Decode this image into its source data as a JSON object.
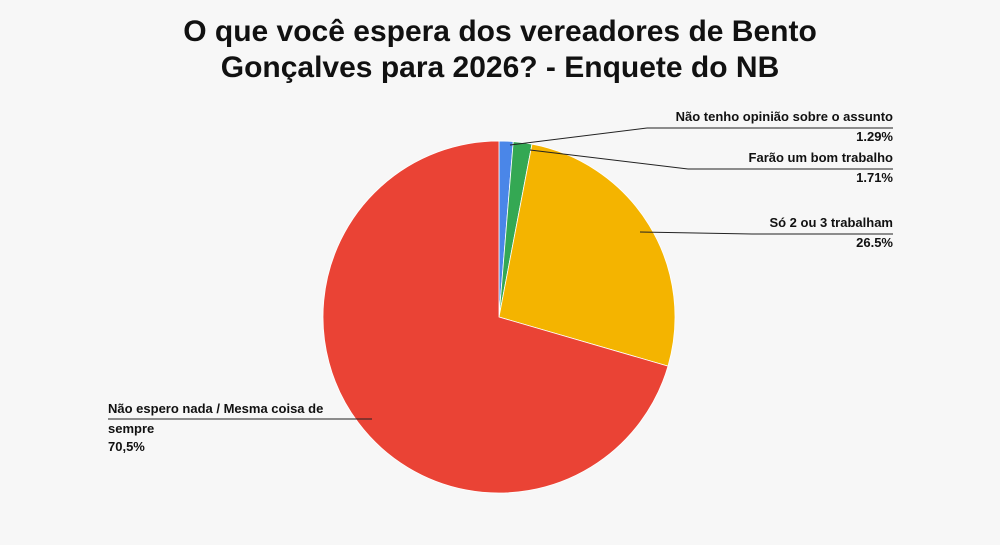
{
  "chart_data": {
    "type": "pie",
    "title_lines": [
      "O que você espera dos vereadores de Bento",
      "Gonçalves para 2026? - Enquete do NB"
    ],
    "start_angle_deg": 0,
    "direction": "clockwise",
    "slices": [
      {
        "label_lines": [
          "Não tenho opinião sobre o assunto"
        ],
        "value": 1.29,
        "value_label": "1.29%",
        "color": "#4a86e8"
      },
      {
        "label_lines": [
          "Farão um bom trabalho"
        ],
        "value": 1.71,
        "value_label": "1.71%",
        "color": "#34a853"
      },
      {
        "label_lines": [
          "Só 2 ou 3 trabalham"
        ],
        "value": 26.5,
        "value_label": "26.5%",
        "color": "#f4b400"
      },
      {
        "label_lines": [
          "Não espero nada / Mesma coisa de",
          "sempre"
        ],
        "value": 70.5,
        "value_label": "70,5%",
        "color": "#ea4335"
      }
    ]
  }
}
